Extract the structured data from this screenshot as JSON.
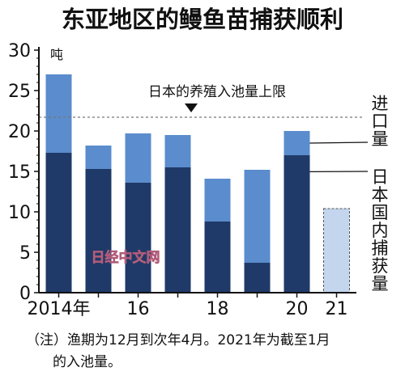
{
  "chart_data": {
    "type": "bar",
    "stacked": true,
    "title": "东亚地区的鳗鱼苗捕获顺利",
    "y_unit": "吨",
    "ylim": [
      0,
      30
    ],
    "y_ticks": [
      "0",
      "5",
      "10",
      "15",
      "20",
      "25",
      "30"
    ],
    "x_labels": [
      "2014年",
      "",
      "16",
      "",
      "18",
      "",
      "20",
      "21"
    ],
    "categories": [
      "2014",
      "2015",
      "2016",
      "2017",
      "2018",
      "2019",
      "2020",
      "2021"
    ],
    "series": [
      {
        "name": "日本国内捕获量",
        "values": [
          17.3,
          15.3,
          13.6,
          15.5,
          8.8,
          3.7,
          17.0,
          10.4
        ]
      },
      {
        "name": "进口量",
        "values": [
          9.7,
          2.9,
          6.1,
          4.0,
          5.3,
          11.5,
          3.0,
          0
        ]
      }
    ],
    "partial_bar_index": 7,
    "reference_line": {
      "value": 21.7,
      "label": "日本的养殖入池量上限"
    },
    "legend": [
      "进口量",
      "日本国内捕获量"
    ],
    "legend_placement": "right",
    "note_line1": "（注）渔期为12月到次年4月。2021年为截至1月",
    "note_line2": "的入池量。",
    "watermark": "日经中文网",
    "colors": {
      "domestic": "#1f3a68",
      "import": "#5b8ccd",
      "partial": "#c3d6ee",
      "reference": "#777777",
      "axis": "#111111"
    }
  }
}
